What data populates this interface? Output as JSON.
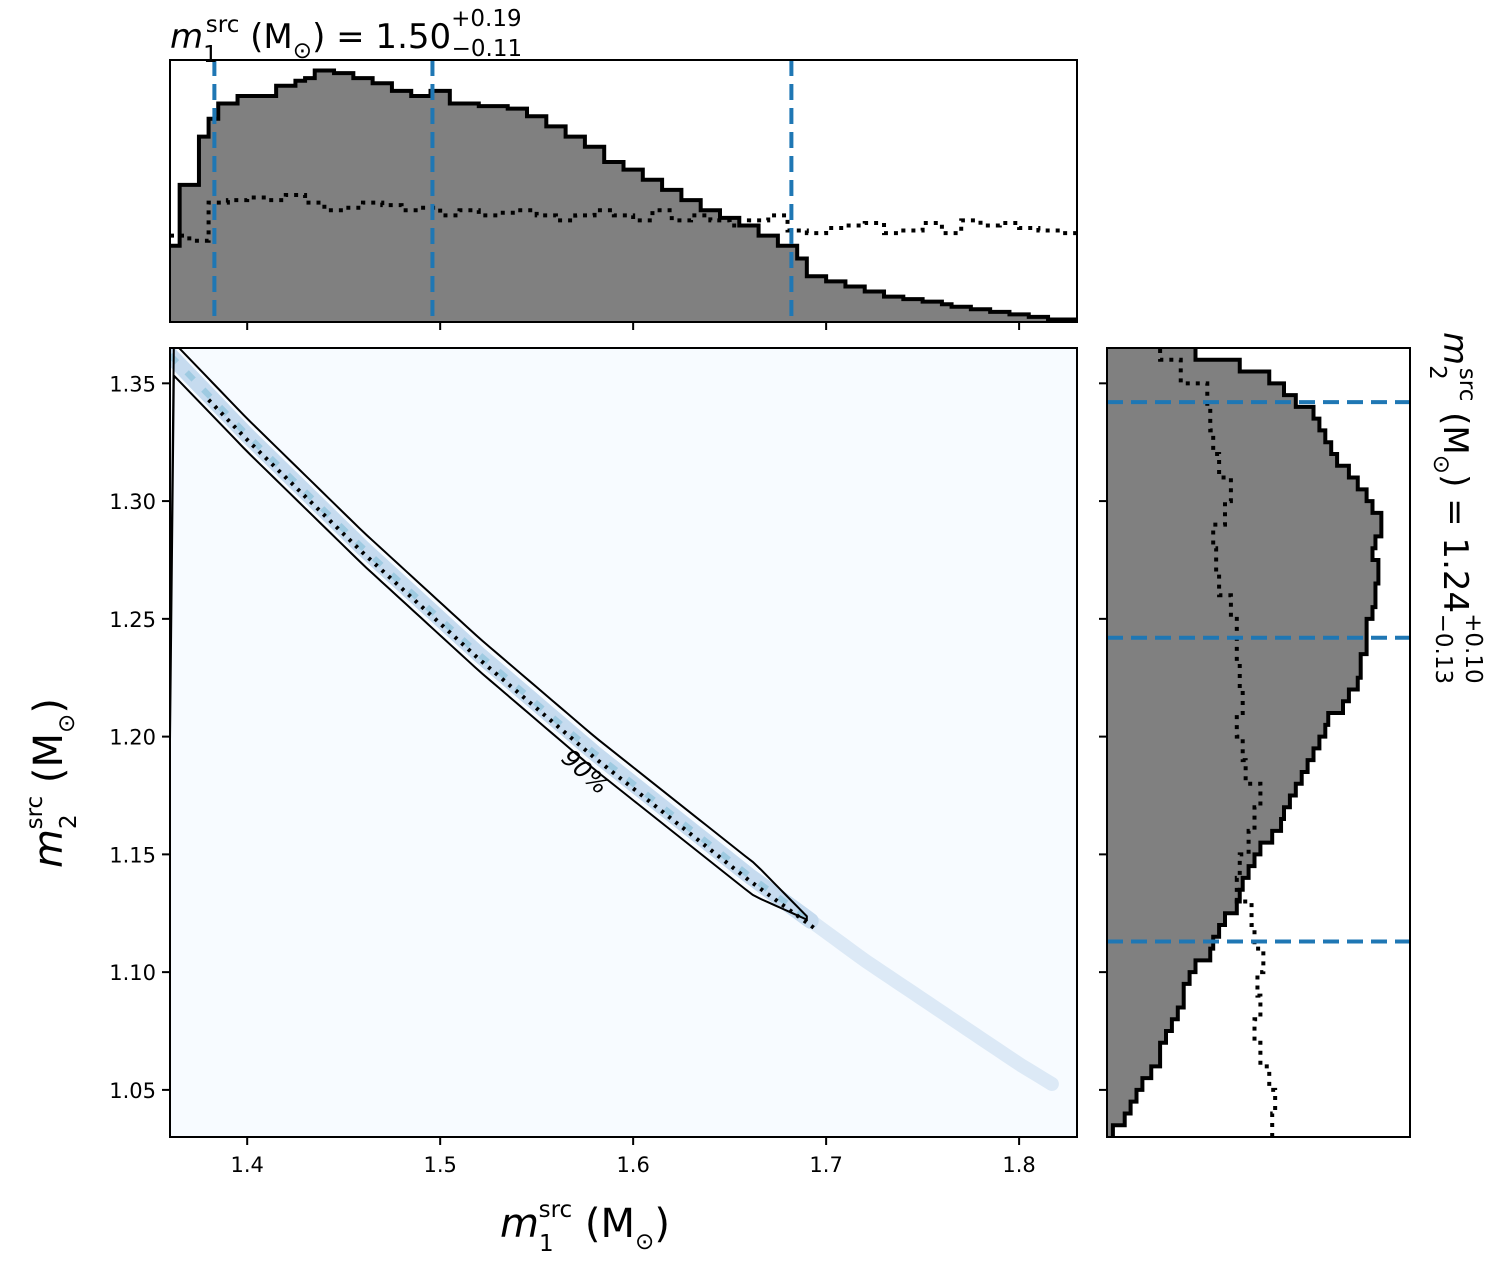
{
  "chart_data": [
    {
      "type": "histogram",
      "panel": "top-marginal",
      "title": {
        "var": "m",
        "sub": "1",
        "sup": "src",
        "unit": " (M",
        "unit_sub": "⊙",
        "unit_close": ") = 1.50",
        "err_plus": "+0.19",
        "err_minus": "−0.11"
      },
      "xlim": [
        1.36,
        1.83
      ],
      "x_ticks": [
        1.4,
        1.5,
        1.6,
        1.7,
        1.8
      ],
      "quantile_lines": [
        1.383,
        1.496,
        1.682
      ],
      "quantile_color": "#1f77b4",
      "fill_color": "#808080",
      "posterior": {
        "x": [
          1.36,
          1.365,
          1.37,
          1.375,
          1.38,
          1.385,
          1.39,
          1.395,
          1.4,
          1.405,
          1.41,
          1.415,
          1.42,
          1.425,
          1.43,
          1.435,
          1.44,
          1.445,
          1.45,
          1.455,
          1.46,
          1.465,
          1.47,
          1.475,
          1.48,
          1.485,
          1.49,
          1.495,
          1.5,
          1.505,
          1.51,
          1.515,
          1.52,
          1.525,
          1.53,
          1.535,
          1.54,
          1.545,
          1.55,
          1.555,
          1.56,
          1.565,
          1.57,
          1.575,
          1.58,
          1.585,
          1.59,
          1.595,
          1.6,
          1.605,
          1.61,
          1.615,
          1.62,
          1.625,
          1.63,
          1.635,
          1.64,
          1.645,
          1.65,
          1.655,
          1.66,
          1.665,
          1.67,
          1.675,
          1.68,
          1.685,
          1.69,
          1.695,
          1.7,
          1.705,
          1.71,
          1.715,
          1.72,
          1.725,
          1.73,
          1.735,
          1.74,
          1.745,
          1.75,
          1.755,
          1.76,
          1.765,
          1.77,
          1.775,
          1.78,
          1.785,
          1.79,
          1.795,
          1.8,
          1.805,
          1.81,
          1.815,
          1.82,
          1.825
        ],
        "y": [
          0.3,
          0.54,
          0.54,
          0.73,
          0.8,
          0.86,
          0.86,
          0.89,
          0.89,
          0.89,
          0.89,
          0.93,
          0.93,
          0.95,
          0.96,
          0.99,
          0.99,
          0.98,
          0.98,
          0.96,
          0.96,
          0.94,
          0.94,
          0.91,
          0.91,
          0.89,
          0.89,
          0.91,
          0.91,
          0.86,
          0.86,
          0.86,
          0.85,
          0.85,
          0.85,
          0.84,
          0.84,
          0.81,
          0.81,
          0.77,
          0.77,
          0.73,
          0.73,
          0.69,
          0.69,
          0.63,
          0.63,
          0.6,
          0.6,
          0.56,
          0.56,
          0.52,
          0.52,
          0.48,
          0.48,
          0.44,
          0.44,
          0.41,
          0.41,
          0.38,
          0.38,
          0.34,
          0.34,
          0.3,
          0.3,
          0.25,
          0.18,
          0.18,
          0.16,
          0.16,
          0.14,
          0.14,
          0.12,
          0.12,
          0.1,
          0.1,
          0.09,
          0.09,
          0.08,
          0.08,
          0.07,
          0.06,
          0.06,
          0.05,
          0.05,
          0.04,
          0.04,
          0.03,
          0.03,
          0.02,
          0.02,
          0.01,
          0.01,
          0.01
        ]
      },
      "prior": {
        "x": [
          1.36,
          1.37,
          1.38,
          1.39,
          1.4,
          1.41,
          1.42,
          1.43,
          1.44,
          1.45,
          1.46,
          1.47,
          1.48,
          1.49,
          1.5,
          1.51,
          1.52,
          1.53,
          1.54,
          1.55,
          1.56,
          1.57,
          1.58,
          1.59,
          1.6,
          1.61,
          1.62,
          1.63,
          1.64,
          1.65,
          1.66,
          1.67,
          1.68,
          1.69,
          1.7,
          1.71,
          1.72,
          1.73,
          1.74,
          1.75,
          1.76,
          1.77,
          1.78,
          1.79,
          1.8,
          1.81,
          1.82
        ],
        "y": [
          0.34,
          0.32,
          0.47,
          0.48,
          0.49,
          0.48,
          0.5,
          0.47,
          0.44,
          0.45,
          0.47,
          0.46,
          0.44,
          0.45,
          0.42,
          0.44,
          0.42,
          0.43,
          0.44,
          0.42,
          0.4,
          0.42,
          0.44,
          0.42,
          0.4,
          0.44,
          0.4,
          0.42,
          0.4,
          0.38,
          0.4,
          0.42,
          0.36,
          0.35,
          0.37,
          0.38,
          0.39,
          0.35,
          0.36,
          0.39,
          0.35,
          0.4,
          0.38,
          0.39,
          0.37,
          0.36,
          0.35
        ]
      }
    },
    {
      "type": "heatmap",
      "panel": "joint",
      "xlim": [
        1.36,
        1.83
      ],
      "ylim": [
        1.03,
        1.365
      ],
      "x_ticks": [
        1.4,
        1.5,
        1.6,
        1.7,
        1.8
      ],
      "y_ticks": [
        1.05,
        1.1,
        1.15,
        1.2,
        1.25,
        1.3,
        1.35
      ],
      "xlabel": {
        "var": "m",
        "sub": "1",
        "sup": "src",
        "unit": " (M",
        "unit_sub": "⊙",
        "unit_close": ")"
      },
      "ylabel": {
        "var": "m",
        "sub": "2",
        "sup": "src",
        "unit": " (M",
        "unit_sub": "⊙",
        "unit_close": ")"
      },
      "background_color": "#f7fbff",
      "contour_label": "90%",
      "contour_color": "#000000",
      "ridge": {
        "x": [
          1.36,
          1.38,
          1.4,
          1.42,
          1.44,
          1.46,
          1.48,
          1.5,
          1.52,
          1.54,
          1.56,
          1.58,
          1.6,
          1.62,
          1.64,
          1.66,
          1.68,
          1.69,
          1.7,
          1.72,
          1.74,
          1.76,
          1.78,
          1.8,
          1.82
        ],
        "y": [
          1.362,
          1.345,
          1.328,
          1.312,
          1.296,
          1.28,
          1.265,
          1.25,
          1.235,
          1.221,
          1.207,
          1.193,
          1.18,
          1.167,
          1.154,
          1.141,
          1.129,
          1.123,
          1.117,
          1.105,
          1.094,
          1.083,
          1.072,
          1.061,
          1.051
        ]
      },
      "contour_width": 0.007,
      "contour_end_x": 1.693,
      "density_ridge_end_x": 1.82
    },
    {
      "type": "histogram",
      "panel": "right-marginal",
      "orientation": "horizontal",
      "title": {
        "var": "m",
        "sub": "2",
        "sup": "src",
        "unit": " (M",
        "unit_sub": "⊙",
        "unit_close": ") = 1.24",
        "err_plus": "+0.10",
        "err_minus": "−0.13"
      },
      "ylim": [
        1.03,
        1.365
      ],
      "quantile_lines": [
        1.113,
        1.242,
        1.342
      ],
      "quantile_color": "#1f77b4",
      "fill_color": "#808080",
      "posterior": {
        "y": [
          1.03,
          1.035,
          1.04,
          1.045,
          1.05,
          1.055,
          1.06,
          1.065,
          1.07,
          1.075,
          1.08,
          1.085,
          1.09,
          1.095,
          1.1,
          1.105,
          1.11,
          1.115,
          1.12,
          1.125,
          1.13,
          1.135,
          1.14,
          1.145,
          1.15,
          1.155,
          1.16,
          1.165,
          1.17,
          1.175,
          1.18,
          1.185,
          1.19,
          1.195,
          1.2,
          1.205,
          1.21,
          1.215,
          1.22,
          1.225,
          1.23,
          1.235,
          1.24,
          1.245,
          1.25,
          1.255,
          1.26,
          1.265,
          1.27,
          1.275,
          1.28,
          1.285,
          1.29,
          1.295,
          1.3,
          1.305,
          1.31,
          1.315,
          1.32,
          1.325,
          1.33,
          1.335,
          1.34,
          1.345,
          1.35,
          1.355,
          1.36
        ],
        "x": [
          0.02,
          0.06,
          0.08,
          0.1,
          0.12,
          0.15,
          0.18,
          0.18,
          0.2,
          0.22,
          0.24,
          0.26,
          0.26,
          0.28,
          0.3,
          0.35,
          0.36,
          0.38,
          0.4,
          0.44,
          0.45,
          0.46,
          0.48,
          0.5,
          0.52,
          0.56,
          0.59,
          0.6,
          0.62,
          0.64,
          0.66,
          0.68,
          0.7,
          0.72,
          0.74,
          0.75,
          0.8,
          0.82,
          0.85,
          0.86,
          0.86,
          0.88,
          0.88,
          0.88,
          0.9,
          0.91,
          0.91,
          0.92,
          0.92,
          0.9,
          0.91,
          0.93,
          0.93,
          0.9,
          0.88,
          0.85,
          0.82,
          0.78,
          0.76,
          0.74,
          0.72,
          0.7,
          0.64,
          0.6,
          0.55,
          0.45,
          0.3
        ]
      },
      "prior": {
        "y": [
          1.03,
          1.04,
          1.05,
          1.06,
          1.07,
          1.08,
          1.09,
          1.1,
          1.11,
          1.12,
          1.13,
          1.14,
          1.15,
          1.16,
          1.17,
          1.18,
          1.19,
          1.2,
          1.21,
          1.22,
          1.23,
          1.24,
          1.25,
          1.26,
          1.27,
          1.28,
          1.29,
          1.3,
          1.31,
          1.32,
          1.33,
          1.34,
          1.35,
          1.36
        ],
        "x": [
          0.56,
          0.57,
          0.55,
          0.52,
          0.5,
          0.52,
          0.51,
          0.53,
          0.5,
          0.49,
          0.44,
          0.45,
          0.48,
          0.5,
          0.52,
          0.47,
          0.46,
          0.44,
          0.46,
          0.45,
          0.44,
          0.44,
          0.42,
          0.38,
          0.37,
          0.36,
          0.4,
          0.42,
          0.38,
          0.36,
          0.35,
          0.34,
          0.25,
          0.18
        ]
      }
    }
  ]
}
